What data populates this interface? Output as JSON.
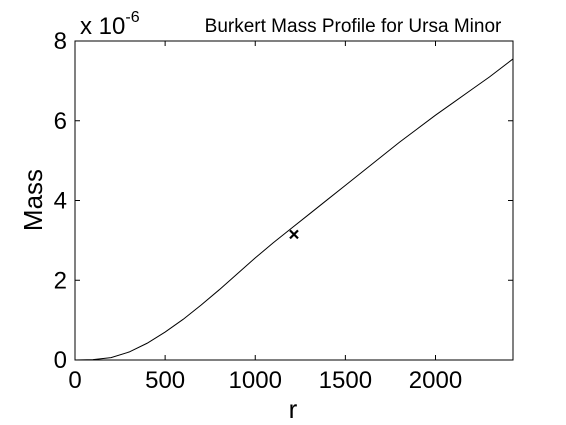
{
  "chart_data": {
    "type": "line",
    "title": "Burkert Mass Profile for Ursa Minor",
    "xlabel": "r",
    "ylabel": "Mass",
    "y_multiplier_label": "x 10",
    "y_multiplier_exponent": "-6",
    "xlim": [
      0,
      2430
    ],
    "ylim": [
      0,
      8
    ],
    "grid": false,
    "x_ticks": [
      0,
      500,
      1000,
      1500,
      2000
    ],
    "x_tick_labels": [
      "0",
      "500",
      "1000",
      "1500",
      "2000"
    ],
    "y_ticks": [
      0,
      2,
      4,
      6,
      8
    ],
    "y_tick_labels": [
      "0",
      "2",
      "4",
      "6",
      "8"
    ],
    "series": [
      {
        "color": "#000000",
        "x": [
          0,
          100,
          200,
          300,
          400,
          500,
          600,
          700,
          800,
          900,
          1000,
          1100,
          1200,
          1300,
          1400,
          1500,
          1600,
          1700,
          1800,
          1900,
          2000,
          2100,
          2200,
          2300,
          2430
        ],
        "y": [
          0,
          0.01,
          0.06,
          0.2,
          0.42,
          0.7,
          1.02,
          1.38,
          1.76,
          2.16,
          2.56,
          2.94,
          3.3,
          3.66,
          4.02,
          4.38,
          4.74,
          5.1,
          5.46,
          5.8,
          6.14,
          6.46,
          6.78,
          7.1,
          7.55
        ]
      }
    ],
    "marker": {
      "symbol": "x",
      "color": "#000000",
      "x": 1215,
      "y": 3.15
    }
  }
}
